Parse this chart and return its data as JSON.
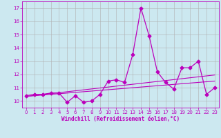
{
  "x": [
    0,
    1,
    2,
    3,
    4,
    5,
    6,
    7,
    8,
    9,
    10,
    11,
    12,
    13,
    14,
    15,
    16,
    17,
    18,
    19,
    20,
    21,
    22,
    23
  ],
  "y_main": [
    10.4,
    10.5,
    10.5,
    10.6,
    10.6,
    9.9,
    10.4,
    9.9,
    10.0,
    10.5,
    11.5,
    11.6,
    11.4,
    13.5,
    17.0,
    14.9,
    12.2,
    11.4,
    10.9,
    12.5,
    12.5,
    13.0,
    10.5,
    11.0
  ],
  "y_trend1": [
    10.35,
    10.42,
    10.49,
    10.56,
    10.63,
    10.7,
    10.77,
    10.84,
    10.91,
    10.98,
    11.05,
    11.12,
    11.19,
    11.26,
    11.33,
    11.4,
    11.47,
    11.54,
    11.61,
    11.68,
    11.75,
    11.82,
    11.89,
    11.96
  ],
  "y_trend2": [
    10.35,
    10.4,
    10.45,
    10.5,
    10.55,
    10.6,
    10.65,
    10.7,
    10.75,
    10.8,
    10.85,
    10.9,
    10.95,
    11.0,
    11.05,
    11.1,
    11.15,
    11.2,
    11.25,
    11.3,
    11.35,
    11.4,
    11.45,
    11.5
  ],
  "bg_color": "#cce8f0",
  "grid_color": "#b0b0b0",
  "xlabel": "Windchill (Refroidissement éolien,°C)",
  "xlim": [
    -0.5,
    23.5
  ],
  "ylim": [
    9.5,
    17.5
  ],
  "yticks": [
    10,
    11,
    12,
    13,
    14,
    15,
    16,
    17
  ],
  "xticks": [
    0,
    1,
    2,
    3,
    4,
    5,
    6,
    7,
    8,
    9,
    10,
    11,
    12,
    13,
    14,
    15,
    16,
    17,
    18,
    19,
    20,
    21,
    22,
    23
  ],
  "line_color": "#bb00bb",
  "marker": "D",
  "markersize": 2.5,
  "tick_fontsize": 5,
  "xlabel_fontsize": 5.5
}
